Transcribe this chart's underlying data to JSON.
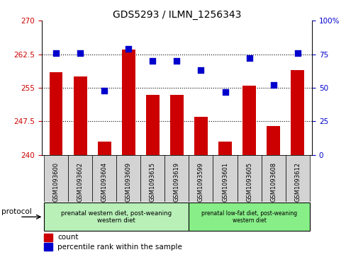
{
  "title": "GDS5293 / ILMN_1256343",
  "samples": [
    "GSM1093600",
    "GSM1093602",
    "GSM1093604",
    "GSM1093609",
    "GSM1093615",
    "GSM1093619",
    "GSM1093599",
    "GSM1093601",
    "GSM1093605",
    "GSM1093608",
    "GSM1093612"
  ],
  "bar_values": [
    258.5,
    257.5,
    243.0,
    263.5,
    253.5,
    253.5,
    248.5,
    243.0,
    255.5,
    246.5,
    259.0
  ],
  "dot_values": [
    76,
    76,
    48,
    79,
    70,
    70,
    63,
    47,
    72,
    52,
    76
  ],
  "bar_color": "#cc0000",
  "dot_color": "#0000cc",
  "ylim_left": [
    240,
    270
  ],
  "ylim_right": [
    0,
    100
  ],
  "yticks_left": [
    240,
    247.5,
    255,
    262.5,
    270
  ],
  "yticks_right": [
    0,
    25,
    50,
    75,
    100
  ],
  "ytick_labels_left": [
    "240",
    "247.5",
    "255",
    "262.5",
    "270"
  ],
  "ytick_labels_right": [
    "0",
    "25",
    "50",
    "75",
    "100%"
  ],
  "hlines": [
    247.5,
    255.0,
    262.5
  ],
  "group1_label": "prenatal western diet, post-weaning\nwestern diet",
  "group2_label": "prenatal low-fat diet, post-weaning\nwestern diet",
  "group1_count": 6,
  "group2_count": 5,
  "protocol_label": "protocol",
  "legend_count_label": "count",
  "legend_pct_label": "percentile rank within the sample",
  "bar_bottom": 240,
  "background_color": "#ffffff",
  "plot_bg": "#ffffff",
  "gray_bg": "#d3d3d3",
  "green1": "#b8f0b8",
  "green2": "#88ee88"
}
